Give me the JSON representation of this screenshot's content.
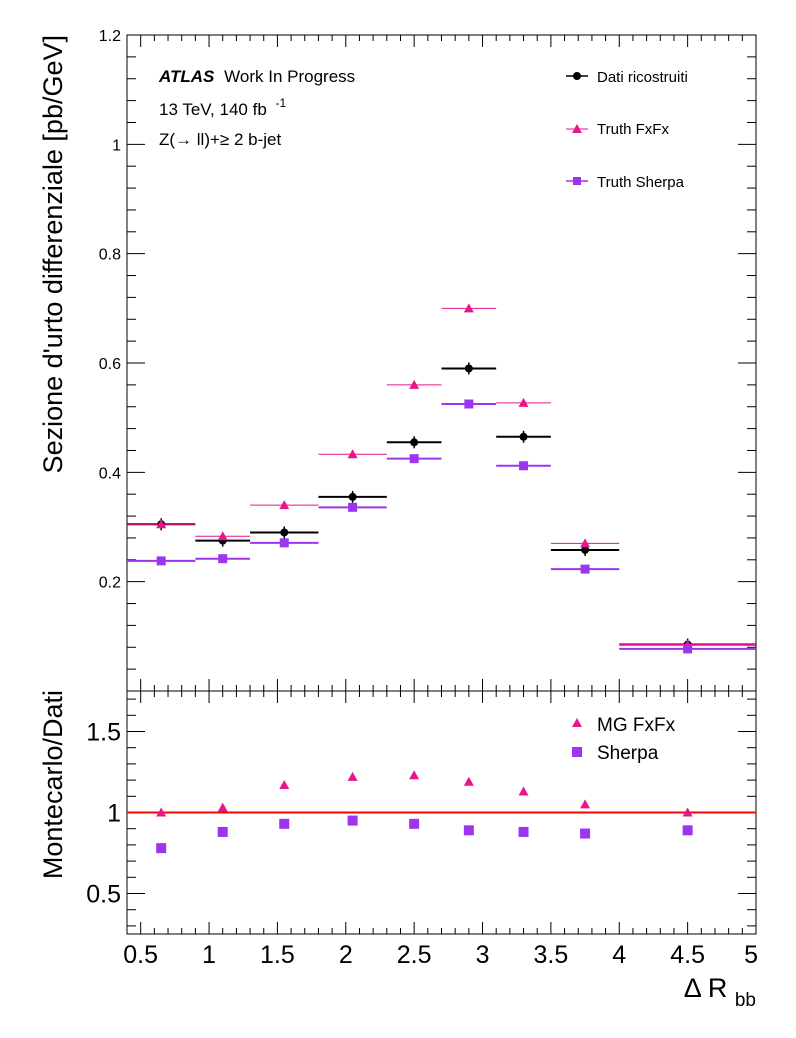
{
  "chart_data": [
    {
      "type": "scatter",
      "panel": "top",
      "ylabel": "Sezione d'urto differenziale [pb/GeV]",
      "xlabel": "",
      "xlim": [
        0.4,
        5
      ],
      "ylim": [
        0,
        1.2
      ],
      "yticks": [
        0.2,
        0.4,
        0.6,
        0.8,
        1,
        1.2
      ],
      "ytick_labels": [
        "0.2",
        "0.4",
        "0.6",
        "0.8",
        "1",
        "1.2"
      ],
      "annotation": {
        "atlas": "ATLAS",
        "status": "Work In Progress",
        "energy_text": "13 TeV, 140 fb",
        "lumi_exponent": "-1",
        "process": "Z(→ ll)+≥ 2 b-jet"
      },
      "legend_position": "top-right",
      "bins": [
        [
          0.4,
          0.9
        ],
        [
          0.9,
          1.3
        ],
        [
          1.3,
          1.8
        ],
        [
          1.8,
          2.3
        ],
        [
          2.3,
          2.7
        ],
        [
          2.7,
          3.1
        ],
        [
          3.1,
          3.5
        ],
        [
          3.5,
          4.0
        ],
        [
          4.0,
          5.0
        ]
      ],
      "centers": [
        0.65,
        1.1,
        1.55,
        2.05,
        2.5,
        2.9,
        3.3,
        3.75,
        4.5
      ],
      "series": [
        {
          "name": "Dati ricostruiti",
          "marker": "circle",
          "color": "#000000",
          "values": [
            0.305,
            0.275,
            0.29,
            0.355,
            0.455,
            0.59,
            0.465,
            0.258,
            0.085
          ]
        },
        {
          "name": "Truth FxFx",
          "marker": "triangle",
          "color": "#e8158c",
          "values": [
            0.305,
            0.283,
            0.34,
            0.433,
            0.56,
            0.7,
            0.527,
            0.27,
            0.085
          ]
        },
        {
          "name": "Truth Sherpa",
          "marker": "square",
          "color": "#9b36ee",
          "values": [
            0.238,
            0.242,
            0.271,
            0.336,
            0.425,
            0.525,
            0.412,
            0.223,
            0.077
          ]
        }
      ]
    },
    {
      "type": "scatter",
      "panel": "bottom",
      "ylabel": "Montecarlo/Dati",
      "xlabel": "Δ R",
      "xlabel_subscript": "bb",
      "xlim": [
        0.4,
        5
      ],
      "ylim": [
        0.25,
        1.75
      ],
      "xticks": [
        0.5,
        1,
        1.5,
        2,
        2.5,
        3,
        3.5,
        4,
        4.5,
        5
      ],
      "xtick_labels": [
        "0.5",
        "1",
        "1.5",
        "2",
        "2.5",
        "3",
        "3.5",
        "4",
        "4.5",
        "5"
      ],
      "yticks": [
        0.5,
        1,
        1.5
      ],
      "ytick_labels": [
        "0.5",
        "1",
        "1.5"
      ],
      "reference_line": 1,
      "reference_color": "#ff0000",
      "legend_position": "top-right",
      "series": [
        {
          "name": "MG FxFx",
          "marker": "triangle",
          "color": "#e8158c",
          "x": [
            0.65,
            1.1,
            1.55,
            2.05,
            2.5,
            2.9,
            3.3,
            3.75,
            4.5
          ],
          "values": [
            1.0,
            1.03,
            1.17,
            1.22,
            1.23,
            1.19,
            1.13,
            1.05,
            1.0
          ]
        },
        {
          "name": "Sherpa",
          "marker": "square",
          "color": "#9b36ee",
          "x": [
            0.65,
            1.1,
            1.55,
            2.05,
            2.5,
            2.9,
            3.3,
            3.75,
            4.5
          ],
          "values": [
            0.78,
            0.88,
            0.93,
            0.95,
            0.93,
            0.89,
            0.88,
            0.87,
            0.89
          ]
        }
      ]
    }
  ]
}
